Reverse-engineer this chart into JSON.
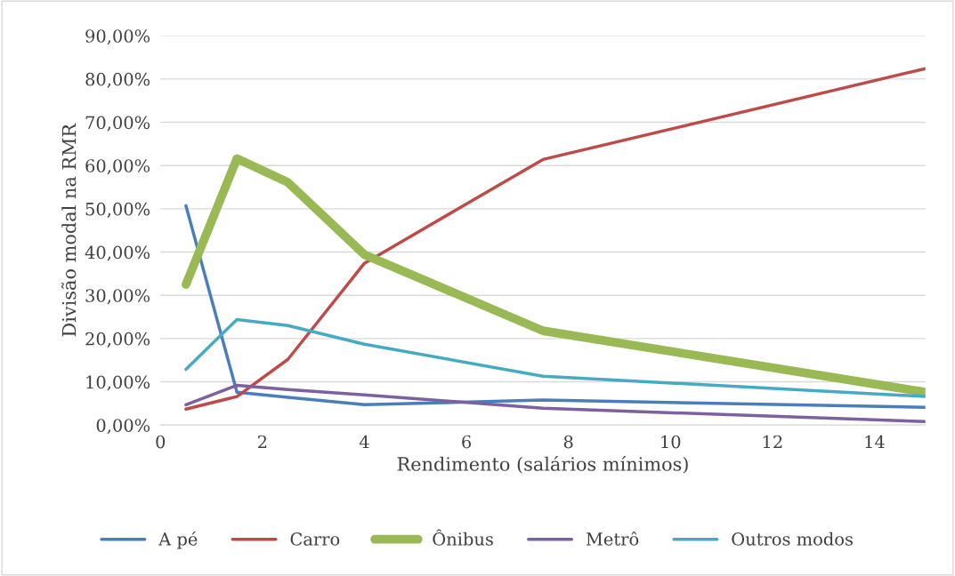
{
  "chart_data": {
    "type": "line",
    "xlabel": "Rendimento (salários mínimos)",
    "ylabel": "Divisão modal na RMR",
    "x": [
      0.5,
      1.5,
      2.5,
      4,
      7.5,
      15
    ],
    "series": [
      {
        "name": "A pé",
        "color": "#4a7ebb",
        "values": [
          50.7,
          7.6,
          6.4,
          4.7,
          5.8,
          4.1
        ]
      },
      {
        "name": "Carro",
        "color": "#be4b48",
        "values": [
          3.7,
          6.6,
          15.2,
          37.4,
          61.4,
          82.4
        ]
      },
      {
        "name": "Ônibus",
        "color": "#98b954",
        "values": [
          32.5,
          61.6,
          56.1,
          39.4,
          21.8,
          7.6
        ]
      },
      {
        "name": "Metrô",
        "color": "#7d60a0",
        "values": [
          4.7,
          9.2,
          8.2,
          7.0,
          3.9,
          0.8
        ]
      },
      {
        "name": "Outros modos",
        "color": "#46aac5",
        "values": [
          12.9,
          24.4,
          23.0,
          18.7,
          11.3,
          6.6
        ]
      }
    ],
    "xlim": [
      0,
      15
    ],
    "xticks": [
      0,
      2,
      4,
      6,
      8,
      10,
      12,
      14
    ],
    "ylim": [
      0,
      90
    ],
    "yticks": [
      {
        "value": 0,
        "label": "0,00%"
      },
      {
        "value": 10,
        "label": "10,00%"
      },
      {
        "value": 20,
        "label": "20,00%"
      },
      {
        "value": 30,
        "label": "30,00%"
      },
      {
        "value": 40,
        "label": "40,00%"
      },
      {
        "value": 50,
        "label": "50,00%"
      },
      {
        "value": 60,
        "label": "60,00%"
      },
      {
        "value": 70,
        "label": "70,00%"
      },
      {
        "value": 80,
        "label": "80,00%"
      },
      {
        "value": 90,
        "label": "90,00%"
      }
    ],
    "grid": "y",
    "legend": "bottom",
    "marker": "none",
    "line_style": "solid"
  }
}
